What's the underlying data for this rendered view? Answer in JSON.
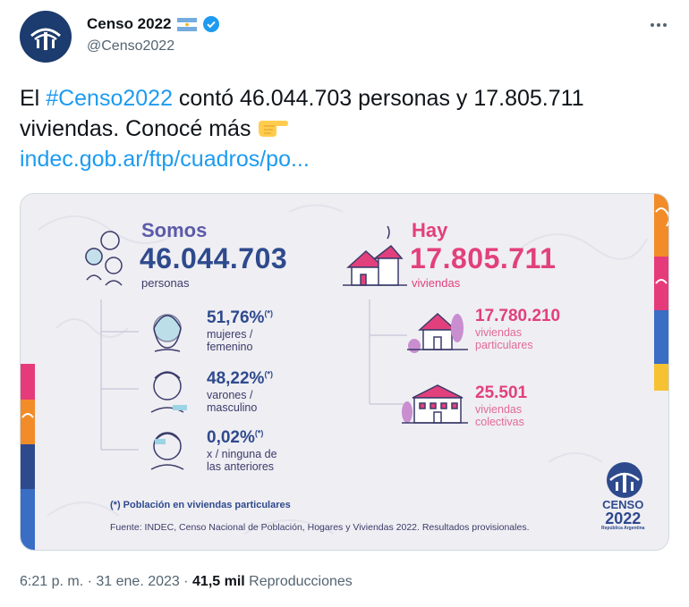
{
  "author": {
    "name": "Censo 2022",
    "handle": "@Censo2022"
  },
  "tweet": {
    "text_before": "El ",
    "hashtag": "#Censo2022",
    "text_after": " contó 46.044.703 personas y 17.805.711 viviendas. Conocé más ",
    "link": "indec.gob.ar/ftp/cuadros/po..."
  },
  "infographic": {
    "left": {
      "label": "Somos",
      "number": "46.044.703",
      "unit": "personas",
      "rows": [
        {
          "pct": "51,76%",
          "mark": "(*)",
          "desc1": "mujeres /",
          "desc2": "femenino"
        },
        {
          "pct": "48,22%",
          "mark": "(*)",
          "desc1": "varones /",
          "desc2": "masculino"
        },
        {
          "pct": "0,02%",
          "mark": "(*)",
          "desc1": "x / ninguna de",
          "desc2": "las anteriores"
        }
      ]
    },
    "right": {
      "label": "Hay",
      "number": "17.805.711",
      "unit": "viviendas",
      "rows": [
        {
          "num": "17.780.210",
          "desc1": "viviendas",
          "desc2": "particulares"
        },
        {
          "num": "25.501",
          "desc1": "viviendas",
          "desc2": "colectivas"
        }
      ]
    },
    "footnote": "(*) Población en viviendas particulares",
    "source": "Fuente: INDEC, Censo Nacional de Población, Hogares y Viviendas 2022. Resultados provisionales.",
    "logo": {
      "line1": "CENSO",
      "line2": "2022",
      "line3": "República Argentina"
    }
  },
  "meta": {
    "time": "6:21 p. m.",
    "sep1": " · ",
    "date": "31 ene. 2023",
    "sep2": " · ",
    "views": "41,5 mil",
    "views_label": " Reproducciones"
  },
  "colors": {
    "link": "#1d9bf0",
    "navy": "#2e4a8d",
    "pink": "#e2407d",
    "muted": "#536471"
  }
}
